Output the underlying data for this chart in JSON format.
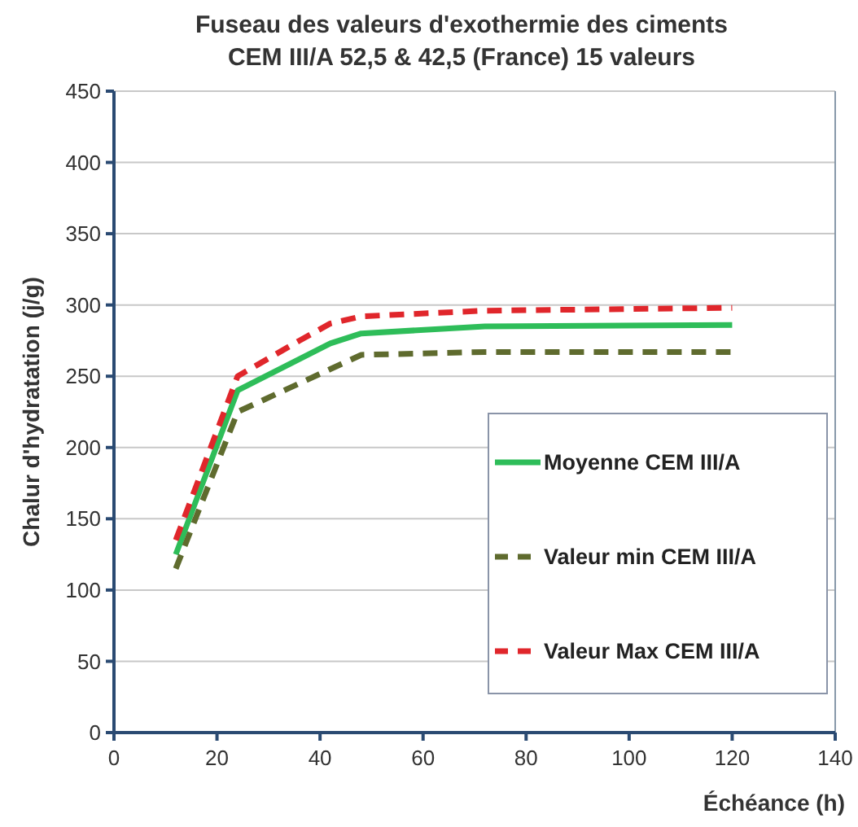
{
  "chart_data": {
    "type": "line",
    "title": "Fuseau des valeurs d'exothermie des ciments\nCEM III/A  52,5 & 42,5 (France)  15 valeurs",
    "xlabel": "Échéance (h)",
    "ylabel": "Chalur d'hydratation (j/g)",
    "xlim": [
      0,
      140
    ],
    "xticks": [
      0,
      20,
      40,
      60,
      80,
      100,
      120,
      140
    ],
    "ylim": [
      0,
      450
    ],
    "yticks": [
      0,
      50,
      100,
      150,
      200,
      250,
      300,
      350,
      400,
      450
    ],
    "grid": "y",
    "legend": "right",
    "marker": "none",
    "series": [
      {
        "name": "Moyenne CEM III/A",
        "color": "#2ebd59",
        "line_style": "solid",
        "x": [
          12,
          24,
          36,
          42,
          48,
          72,
          120
        ],
        "values": [
          125,
          240,
          262,
          273,
          280,
          285,
          286
        ]
      },
      {
        "name": "Valeur min CEM III/A",
        "color": "#5f6b2e",
        "line_style": "dashed",
        "x": [
          12,
          24,
          36,
          48,
          72,
          120
        ],
        "values": [
          115,
          225,
          245,
          265,
          267,
          267
        ]
      },
      {
        "name": "Valeur Max CEM III/A",
        "color": "#e0262b",
        "line_style": "dashed",
        "x": [
          12,
          24,
          36,
          42,
          48,
          72,
          120
        ],
        "values": [
          135,
          250,
          275,
          287,
          292,
          296,
          298
        ]
      }
    ]
  }
}
